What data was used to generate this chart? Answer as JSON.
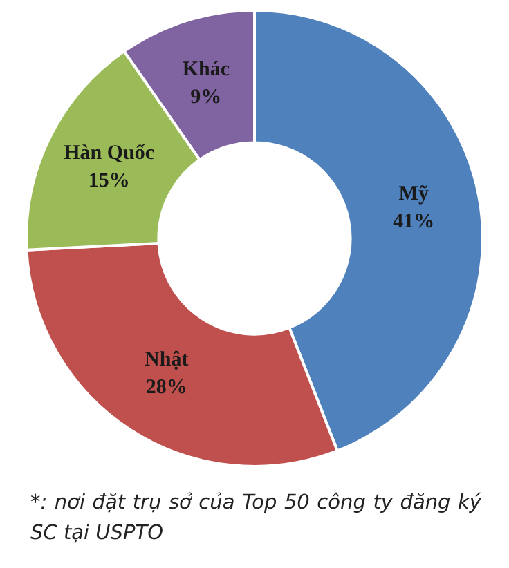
{
  "chart_data": {
    "type": "donut",
    "categories": [
      "Mỹ",
      "Nhật",
      "Hàn Quốc",
      "Khác"
    ],
    "values": [
      41,
      28,
      15,
      9
    ],
    "value_labels": [
      "41%",
      "28%",
      "15%",
      "9%"
    ],
    "colors": [
      "#4f81bd",
      "#c0504d",
      "#9bbb59",
      "#8064a2"
    ],
    "legend": false,
    "annotations": [
      "*: nơi đặt trụ sở của Top 50 công ty đăng ký SC tại USPTO"
    ]
  }
}
